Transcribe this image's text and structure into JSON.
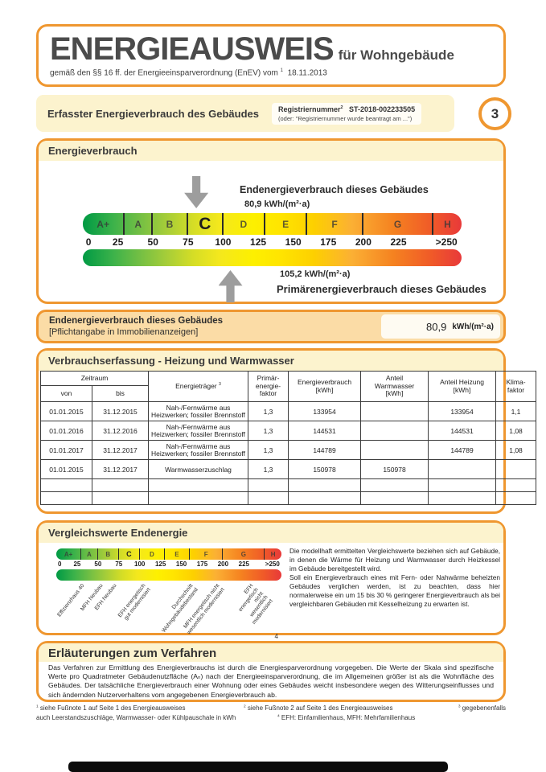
{
  "header": {
    "title": "ENERGIEAUSWEIS",
    "subtitle": "für Wohngebäude",
    "regulation": "gemäß den §§ 16 ff. der Energieeinsparverordnung (EnEV) vom",
    "reg_mark": "1",
    "date": "18.11.2013"
  },
  "banner": {
    "title": "Erfasster Energieverbrauch des Gebäudes",
    "registry_label": "Registriernummer",
    "registry_mark": "2",
    "registry_value": "ST-2018-002233505",
    "registry_alt": "(oder: \"Registriernummer wurde beantragt am ...\")",
    "page_number": "3"
  },
  "consumption": {
    "section_title": "Energieverbrauch",
    "end_label": "Endenergieverbrauch dieses Gebäudes",
    "end_value_text": "80,9  kWh/(m²·a)",
    "end_value_num": 80.9,
    "primary_value_text": "105,2  kWh/(m²·a)",
    "primary_value_num": 105.2,
    "primary_label": "Primärenergieverbrauch dieses Gebäudes"
  },
  "scale": {
    "classes": [
      {
        "label": "A+",
        "width": 11.1
      },
      {
        "label": "A",
        "width": 7.4
      },
      {
        "label": "B",
        "width": 9.3
      },
      {
        "label": "C",
        "width": 9.3,
        "highlight": true
      },
      {
        "label": "D",
        "width": 11.1
      },
      {
        "label": "E",
        "width": 11.1
      },
      {
        "label": "F",
        "width": 14.8
      },
      {
        "label": "G",
        "width": 18.5
      },
      {
        "label": "H",
        "width": 7.4
      }
    ],
    "numbers": [
      "0",
      "25",
      "50",
      "75",
      "100",
      "125",
      "150",
      "175",
      "200",
      "225",
      ">250"
    ],
    "max_value_hint": 270
  },
  "band": {
    "line1": "Endenergieverbrauch dieses Gebäudes",
    "line2": "[Pflichtangabe in Immobilienanzeigen]",
    "value": "80,9",
    "unit": "kWh/(m²·a)"
  },
  "table": {
    "title": "Verbrauchserfassung - Heizung und Warmwasser",
    "headers": {
      "zeitraum": "Zeitraum",
      "von": "von",
      "bis": "bis",
      "energietraeger": "Energieträger",
      "energietraeger_mark": "3",
      "pef": "Primär-\nenergie-\nfaktor",
      "verbrauch": "Energieverbrauch\n[kWh]",
      "warmwasser": "Anteil\nWarmwasser\n[kWh]",
      "heizung": "Anteil Heizung\n[kWh]",
      "klima": "Klima-\nfaktor"
    },
    "rows": [
      {
        "von": "01.01.2015",
        "bis": "31.12.2015",
        "traeger": "Nah-/Fernwärme aus Heizwerken; fossiler Brennstoff",
        "small": true,
        "pef": "1,3",
        "verbrauch": "133954",
        "ww": "",
        "heizung": "133954",
        "klima": "1,1"
      },
      {
        "von": "01.01.2016",
        "bis": "31.12.2016",
        "traeger": "Nah-/Fernwärme aus Heizwerken; fossiler Brennstoff",
        "small": true,
        "pef": "1,3",
        "verbrauch": "144531",
        "ww": "",
        "heizung": "144531",
        "klima": "1,08"
      },
      {
        "von": "01.01.2017",
        "bis": "31.12.2017",
        "traeger": "Nah-/Fernwärme aus Heizwerken; fossiler Brennstoff",
        "small": true,
        "pef": "1,3",
        "verbrauch": "144789",
        "ww": "",
        "heizung": "144789",
        "klima": "1,08"
      },
      {
        "von": "01.01.2015",
        "bis": "31.12.2017",
        "traeger": "Warmwasserzuschlag",
        "small": false,
        "pef": "1,3",
        "verbrauch": "150978",
        "ww": "150978",
        "heizung": "",
        "klima": ""
      },
      {
        "von": "",
        "bis": "",
        "traeger": "",
        "small": false,
        "pef": "",
        "verbrauch": "",
        "ww": "",
        "heizung": "",
        "klima": ""
      },
      {
        "von": "",
        "bis": "",
        "traeger": "",
        "small": false,
        "pef": "",
        "verbrauch": "",
        "ww": "",
        "heizung": "",
        "klima": ""
      }
    ]
  },
  "comparison": {
    "title": "Vergleichswerte Endenergie",
    "labels": [
      {
        "text": "Effizienzhaus 40",
        "value": 30
      },
      {
        "text": "MFH Neubau",
        "value": 52
      },
      {
        "text": "EFH Neubau",
        "value": 68
      },
      {
        "text": "EFH energetisch\ngut modernisiert",
        "value": 103
      },
      {
        "text": "Durchschnitt\nWohngebäudebestand",
        "value": 160
      },
      {
        "text": "MFH energetisch nicht\nwesentlich modernisiert",
        "value": 192
      },
      {
        "text": "EFH energetisch nicht\nwesentlich modernisiert",
        "value": 232
      }
    ],
    "labels_mark": "4",
    "paragraph": "Die modellhaft ermittelten Vergleichswerte beziehen sich auf Gebäude, in denen die Wärme für Heizung und Warmwasser durch Heizkessel im Gebäude bereitgestellt wird.\nSoll ein Energieverbrauch eines mit Fern- oder Nahwärme beheizten Gebäudes verglichen werden, ist zu beachten, dass hier normalerweise ein um 15 bis 30 % geringerer Energieverbrauch als bei vergleichbaren Gebäuden mit Kesselheizung zu erwarten ist."
  },
  "explanation": {
    "title": "Erläuterungen zum Verfahren",
    "text": "Das Verfahren zur Ermittlung des Energieverbrauchs ist durch die Energiesparverordnung vorgegeben. Die Werte der Skala sind spezifische Werte pro Quadratmeter Gebäudenutzfläche (Aₙ) nach der Energieeinsparverordnung, die im Allgemeinen größer ist als die Wohnfläche des Gebäudes. Der tatsächliche Energieverbrauch einer Wohnung oder eines Gebäudes weicht insbesondere wegen des Witterungseinflusses und sich ändernden Nutzerverhaltens vom angegebenen Energieverbrauch ab."
  },
  "footnotes": {
    "fn1_mark": "1",
    "fn1": "siehe Fußnote 1 auf Seite 1 des Energieausweises",
    "fn2_mark": "2",
    "fn2": "siehe Fußnote 2 auf Seite 1 des Energieausweises",
    "fn3_mark": "3",
    "fn3": "gegebenenfalls",
    "fn3_cont": "auch Leerstandszuschläge, Warmwasser- oder Kühlpauschale in kWh",
    "fn4_mark": "4",
    "fn4": "EFH: Einfamilienhaus, MFH: Mehrfamilienhaus"
  },
  "colors": {
    "accent_orange": "#ef9730",
    "cream": "#fcf3ce",
    "band_fill": "#fbdca6",
    "scale_green": "#009a44",
    "scale_yellow": "#fdf000",
    "scale_red": "#e8393a"
  }
}
